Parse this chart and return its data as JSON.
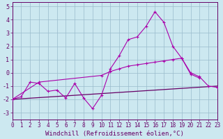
{
  "line1_x": [
    0,
    1,
    2,
    3,
    4,
    5,
    6,
    7,
    8,
    9,
    10,
    11,
    12,
    13,
    14,
    15,
    16,
    17,
    18,
    19,
    20,
    21
  ],
  "line1_y": [
    -2.0,
    -1.8,
    -0.7,
    -0.8,
    -1.4,
    -1.3,
    -1.9,
    -0.8,
    -1.9,
    -2.7,
    -1.7,
    0.3,
    1.3,
    2.5,
    2.7,
    3.5,
    4.6,
    3.8,
    2.0,
    1.1,
    -0.1,
    -0.4
  ],
  "line2_x": [
    0,
    3,
    10,
    11,
    12,
    13,
    14,
    15,
    16,
    17,
    18,
    19,
    20,
    21,
    22,
    23
  ],
  "line2_y": [
    -2.0,
    -0.7,
    -0.2,
    0.1,
    0.3,
    0.5,
    0.6,
    0.7,
    0.8,
    0.9,
    1.0,
    1.1,
    0.0,
    -0.3,
    -1.0,
    -1.1
  ],
  "line3_x": [
    0,
    23
  ],
  "line3_y": [
    -2.0,
    -1.0
  ],
  "color_main": "#aa00aa",
  "color_dark": "#660066",
  "background": "#cce8f0",
  "grid_color": "#99bbcc",
  "xlim": [
    0,
    23
  ],
  "ylim": [
    -3.5,
    5.3
  ],
  "yticks": [
    -3,
    -2,
    -1,
    0,
    1,
    2,
    3,
    4,
    5
  ],
  "xticks": [
    0,
    1,
    2,
    3,
    4,
    5,
    6,
    7,
    8,
    9,
    10,
    11,
    12,
    13,
    14,
    15,
    16,
    17,
    18,
    19,
    20,
    21,
    22,
    23
  ],
  "xlabel": "Windchill (Refroidissement éolien,°C)",
  "tick_fontsize": 5.5,
  "xlabel_fontsize": 6.5
}
